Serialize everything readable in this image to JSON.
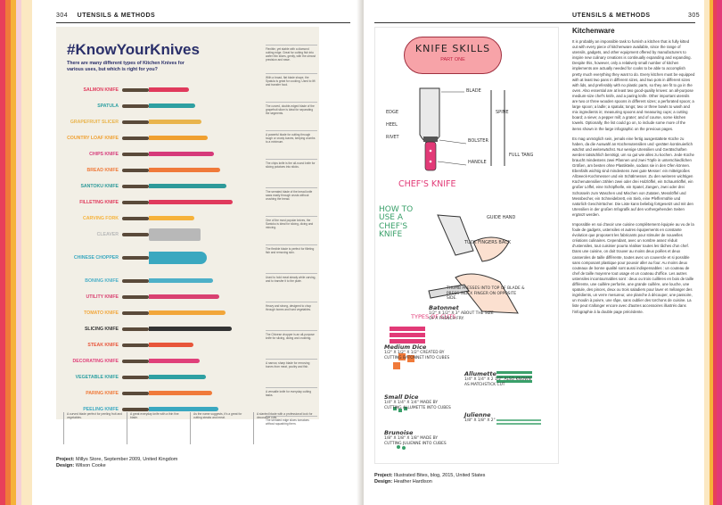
{
  "left_page": {
    "page_number": "304",
    "running_head": "UTENSILS & METHODS",
    "infographic": {
      "title": "#KnowYourKnives",
      "subtitle": "There are many different types of Kitchen Knives for various uses, but which is right for you?",
      "knives": [
        {
          "name": "SALMON KNIFE",
          "color": "#e03a5c"
        },
        {
          "name": "SPATULA",
          "color": "#2ea0a2"
        },
        {
          "name": "GRAPEFRUIT SLICER",
          "color": "#e9b44c"
        },
        {
          "name": "COUNTRY LOAF KNIFE",
          "color": "#f0a030"
        },
        {
          "name": "CHIPS KNIFE",
          "color": "#d63a7a"
        },
        {
          "name": "BREAD KNIFE",
          "color": "#f07a3a"
        },
        {
          "name": "SANTOKU KNIFE",
          "color": "#2e9a9a"
        },
        {
          "name": "FILLETING KNIFE",
          "color": "#e03a5c"
        },
        {
          "name": "CARVING FORK",
          "color": "#f6b23a"
        },
        {
          "name": "CLEAVER",
          "color": "#b8b8b8"
        },
        {
          "name": "CHINESE CHOPPER",
          "color": "#3aa8c0"
        },
        {
          "name": "BONING KNIFE",
          "color": "#4db0c8"
        },
        {
          "name": "UTILITY KNIFE",
          "color": "#d94070"
        },
        {
          "name": "TOMATO KNIFE",
          "color": "#f2a63a"
        },
        {
          "name": "SLICING KNIFE",
          "color": "#333333"
        },
        {
          "name": "STEAK KNIFE",
          "color": "#e8553a"
        },
        {
          "name": "DECORATING KNIFE",
          "color": "#e0407a"
        },
        {
          "name": "VEGETABLE KNIFE",
          "color": "#2ea0a2"
        },
        {
          "name": "PARING KNIFE",
          "color": "#f07a3a"
        },
        {
          "name": "PEELING KNIFE",
          "color": "#3aa8c0"
        }
      ],
      "descriptions": [
        "Flexible, yet stable with a diamond cutting edge. Great for cutting fish into wafer thin slices, gently, with the utmost precision and ease.",
        "With a broad, flat blade shape, the Spatula is great for cooking. Used to lift and transfer food.",
        "The curved, double-edged blade of the grapefruit slicer is ideal for separating the segments.",
        "A powerful blade for cutting through tough or crusty loaves, keeping crumbs to a minimum.",
        "The chips knife is the all-round knife for slicing potatoes into sticks.",
        "The serrated blade of the bread knife saws easily through crusts without crushing the bread.",
        "One of the most popular knives, the Santoku is ideal for slicing, dicing and mincing.",
        "The flexible blade is perfect for filleting fish and removing skin.",
        "Used to hold meat steady while carving, and to transfer it to the plate.",
        "Heavy and strong, designed to chop through bones and hard vegetables.",
        "The Chinese chopper is an all-purpose knife for slicing, dicing and crushing.",
        "A narrow, sharp blade for removing bones from meat, poultry and fish.",
        "A versatile knife for everyday cutting tasks.",
        "The serrated edge slices tomatoes without squashing them.",
        "A long, thin blade for slicing cooked meats.",
        "A serrated steak knife cuts cleanly through meat.",
        "Creates decorative cuts and garnishes.",
        "A small knife ideal for chopping vegetables.",
        "The paring knife is great for peeling and trimming.",
        "The peeling knife has a curved blade for peeling round produce."
      ],
      "bottom_notes": [
        "A curved blade perfect for peeling fruit and vegetables.",
        "A great everyday knife with a thin fine blade.",
        "As the name suggests, it's a great for cutting steaks and meat.",
        "A slanted blade with a professional look for decorative cuts."
      ]
    },
    "credit": {
      "label": "Project:",
      "project": "Millys Store, September 2009, United Kingdom",
      "design_label": "Design:",
      "designer": "Wilson Cooke"
    }
  },
  "right_page": {
    "page_number": "305",
    "running_head": "UTENSILS & METHODS",
    "illustration": {
      "banner_title": "KNIFE SKILLS",
      "banner_sub": "PART ONE",
      "chefs_knife": "CHEF'S KNIFE",
      "how_to_use": "HOW TO USE A CHEF'S KNIFE",
      "types_of_cuts": "TYPES OF CUTS",
      "labels": {
        "blade": "BLADE",
        "edge": "EDGE",
        "heel": "HEEL",
        "rivet": "RIVET",
        "bolster": "BOLSTER",
        "handle": "HANDLE",
        "spine": "SPINE",
        "full_tang": "FULL TANG",
        "guide_hand": "GUIDE HAND",
        "tuck_fingers": "TUCK FINGERS BACK",
        "thumb_press": "THUMB PRESSES INTO TOP OF BLADE & PRESS INDEX FINGER ON OPPOSITE SIDE."
      },
      "cuts": [
        {
          "name": "Batonnet",
          "text": "1/2\" X 1/2\" X 3\" ABOUT THE SIZE OF A FRENCH FRY."
        },
        {
          "name": "Medium Dice",
          "text": "1/2\" X 1/2\" X 1/2\" CREATED BY CUTTING BATONNET INTO CUBES"
        },
        {
          "name": "Allumette",
          "text": "1/4\" X 1/4\" X 2 1/2\" ALSO KNOWN AS MATCHSTICK CUT"
        },
        {
          "name": "Small Dice",
          "text": "1/4\" X 1/4\" X 1/4\" MADE BY CUTTING ALLUMETTE INTO CUBES"
        },
        {
          "name": "Julienne",
          "text": "1/8\" X 1/8\" X 2\""
        },
        {
          "name": "Brunoise",
          "text": "1/8\" X 1/8\" X 1/8\" MADE BY CUTTING JULIENNE INTO CUBES"
        }
      ]
    },
    "article": {
      "heading": "Kitchenware",
      "paragraphs": [
        "It is probably an impossible task to furnish a kitchen that is fully kitted out with every piece of kitchenware available, since the range of utensils, gadgets, and other equipment offered by manufacturers to inspire new culinary creations is continually expanding and expanding. Despite this, however, only a relatively small number of kitchen implements are actually needed for cooks to be able to accomplish pretty much everything they want to do. Every kitchen must be equipped with at least two pans in different sizes, and two pots in different sizes with lids, and preferably with no plastic parts, so they are fit to go in the oven. Also essential are at least two good-quality knives: an all-purpose medium-size chef's knife, and a paring knife. Other important utensils are two or three wooden spoons in different sizes; a perforated spoon; a large spoon; a ladle; a spatula; tongs; two or three bowls to wash and mix ingredients in; measuring spoons and measuring cups; a cutting board; a sieve; a pepper mill; a grater; and of course, some kitchen towels. Optionally, the list could go on, to include some more of the items shown in the large infographic on the previous pages.",
        "Es mag unmöglich sein, jemals eine fertig ausgestattete Küche zu haben, da die Auswahl an Küchenutensilien und -geräten kontinuierlich wächst und weiterwächst. Nur wenige Utensilien und Gerätschaften werden tatsächlich benötigt, um so gut wie alles zu kochen. Jede Küche braucht mindestens zwei Pfannen und zwei Töpfe in unterschiedlichen Größen, am besten ohne Plastikteile, sodass sie in den Ofen können. Ebenfalls wichtig sind mindestens zwei gute Messer: ein mittelgroßes Allzweck-Kochmesser und ein Schälmesser. Zu den weiteren wichtigen Küchenutensilien zählen zwei oder drei Holzlöffel, ein Schaumlöffel, ein großer Löffel, eine Schöpfkelle, ein Spatel, Zangen, zwei oder drei Schüsseln zum Waschen und Mischen von Zutaten, Messlöffel und Messbecher, ein Schneidebrett, ein Sieb, eine Pfeffermühle und natürlich Geschirrtücher. Die Liste kann beliebig fortgesetzt und mit den Utensilien in der großen Infografik auf den vorhergehenden Seiten ergänzt werden.",
        "Impossible en soi d'avoir une cuisine complètement équipée au vu de la foule de gadgets, ustensiles et autres équipements en constante évolution que proposent les fabricants pour stimuler de nouvelles créations culinaires. Cependant, avec un nombre assez réduit d'ustensiles, tout cuisinier pourra réaliser toutes les tâches d'un chef. Dans une cuisine, on doit trouver au moins deux poêles et deux casseroles de taille différente, toutes avec un couvercle et si possible sans composant plastique pour pouvoir aller au four. Au moins deux couteaux de bonne qualité sont aussi indispensables : un couteau de chef de taille moyenne tout usage et un couteau d'office. Les autres ustensiles incontournables sont : deux ou trois cuillères en bois de taille différente, une cuillère perforée, une grande cuillère, une louche, une spatule, des pinces, deux ou trois saladiers pour laver et mélanger des ingrédients, un verre mesureur, une planche à découper, une passoire, un moulin à poivre, une râpe, sans oublier des torchons de cuisine. La liste peut s'allonger encore avec d'autres accessoires illustrés dans l'infographie à la double page précédente."
      ]
    },
    "credit": {
      "label": "Project:",
      "project": "Illustrated Bites, blog, 2015, United States",
      "design_label": "Design:",
      "designer": "Heather Hardison"
    }
  }
}
